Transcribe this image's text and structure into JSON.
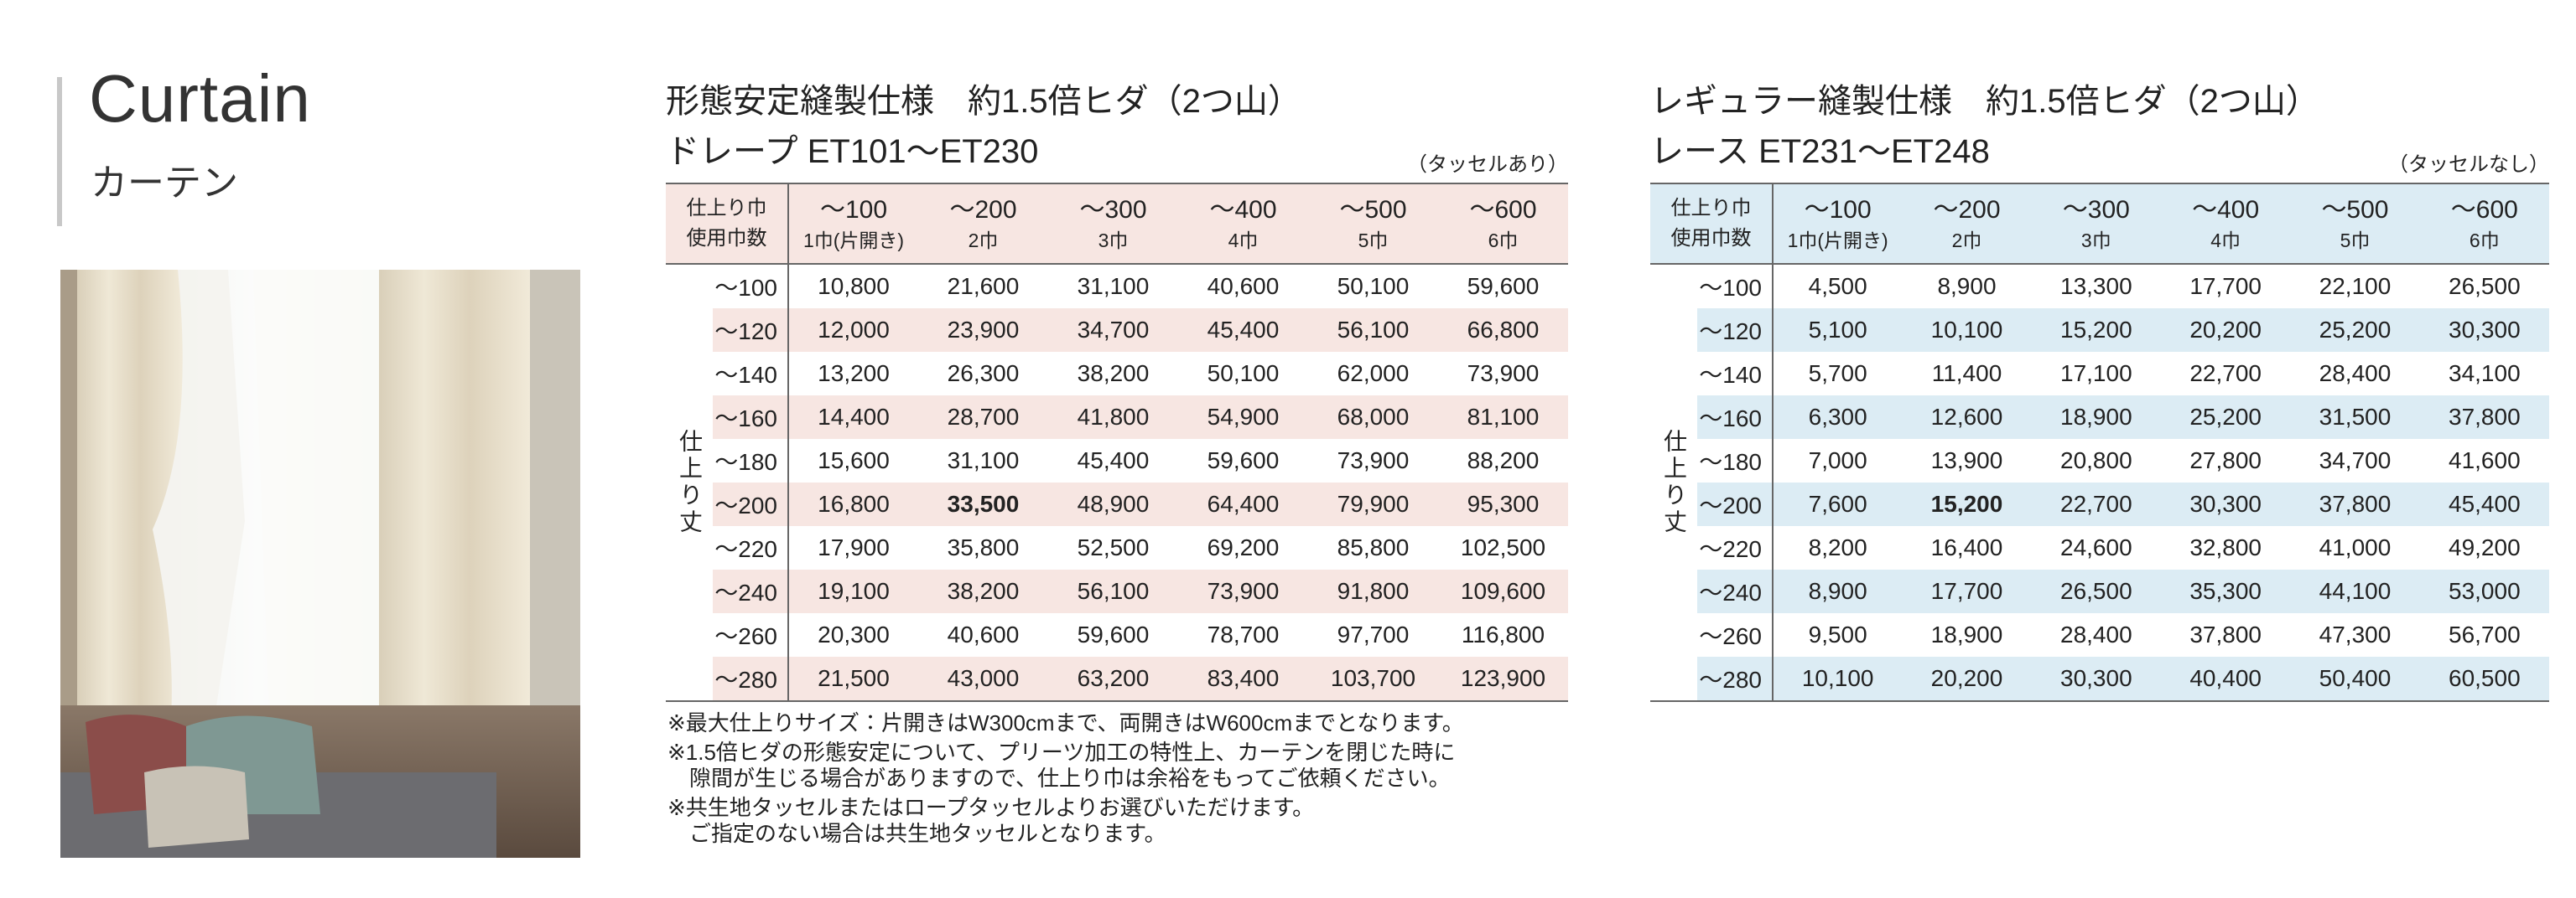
{
  "header": {
    "title": "Curtain",
    "subtitle": "カーテン"
  },
  "tables": [
    {
      "title_line1": "形態安定縫製仕様　約1.5倍ヒダ（2つ山）",
      "title_line2": "ドレープ ET101～ET230",
      "note": "（タッセルあり）",
      "accent_color": "#f7e6e2",
      "corner": [
        "仕上り巾",
        "使用巾数"
      ],
      "row_header": "仕上り丈",
      "columns": [
        {
          "width": "～100",
          "count": "1巾(片開き)"
        },
        {
          "width": "～200",
          "count": "2巾"
        },
        {
          "width": "～300",
          "count": "3巾"
        },
        {
          "width": "～400",
          "count": "4巾"
        },
        {
          "width": "～500",
          "count": "5巾"
        },
        {
          "width": "～600",
          "count": "6巾"
        }
      ],
      "emphasis": {
        "row": 5,
        "column": 1
      },
      "rows": [
        {
          "label": "～100",
          "cells": [
            "10,800",
            "21,600",
            "31,100",
            "40,600",
            "50,100",
            "59,600"
          ]
        },
        {
          "label": "～120",
          "cells": [
            "12,000",
            "23,900",
            "34,700",
            "45,400",
            "56,100",
            "66,800"
          ]
        },
        {
          "label": "～140",
          "cells": [
            "13,200",
            "26,300",
            "38,200",
            "50,100",
            "62,000",
            "73,900"
          ]
        },
        {
          "label": "～160",
          "cells": [
            "14,400",
            "28,700",
            "41,800",
            "54,900",
            "68,000",
            "81,100"
          ]
        },
        {
          "label": "～180",
          "cells": [
            "15,600",
            "31,100",
            "45,400",
            "59,600",
            "73,900",
            "88,200"
          ]
        },
        {
          "label": "～200",
          "cells": [
            "16,800",
            "33,500",
            "48,900",
            "64,400",
            "79,900",
            "95,300"
          ]
        },
        {
          "label": "～220",
          "cells": [
            "17,900",
            "35,800",
            "52,500",
            "69,200",
            "85,800",
            "102,500"
          ]
        },
        {
          "label": "～240",
          "cells": [
            "19,100",
            "38,200",
            "56,100",
            "73,900",
            "91,800",
            "109,600"
          ]
        },
        {
          "label": "～260",
          "cells": [
            "20,300",
            "40,600",
            "59,600",
            "78,700",
            "97,700",
            "116,800"
          ]
        },
        {
          "label": "～280",
          "cells": [
            "21,500",
            "43,000",
            "63,200",
            "83,400",
            "103,700",
            "123,900"
          ]
        }
      ]
    },
    {
      "title_line1": "レギュラー縫製仕様　約1.5倍ヒダ（2つ山）",
      "title_line2": "レース ET231～ET248",
      "note": "（タッセルなし）",
      "accent_color": "#dcecf4",
      "corner": [
        "仕上り巾",
        "使用巾数"
      ],
      "row_header": "仕上り丈",
      "columns": [
        {
          "width": "～100",
          "count": "1巾(片開き)"
        },
        {
          "width": "～200",
          "count": "2巾"
        },
        {
          "width": "～300",
          "count": "3巾"
        },
        {
          "width": "～400",
          "count": "4巾"
        },
        {
          "width": "～500",
          "count": "5巾"
        },
        {
          "width": "～600",
          "count": "6巾"
        }
      ],
      "emphasis": {
        "row": 5,
        "column": 1
      },
      "rows": [
        {
          "label": "～100",
          "cells": [
            "4,500",
            "8,900",
            "13,300",
            "17,700",
            "22,100",
            "26,500"
          ]
        },
        {
          "label": "～120",
          "cells": [
            "5,100",
            "10,100",
            "15,200",
            "20,200",
            "25,200",
            "30,300"
          ]
        },
        {
          "label": "～140",
          "cells": [
            "5,700",
            "11,400",
            "17,100",
            "22,700",
            "28,400",
            "34,100"
          ]
        },
        {
          "label": "～160",
          "cells": [
            "6,300",
            "12,600",
            "18,900",
            "25,200",
            "31,500",
            "37,800"
          ]
        },
        {
          "label": "～180",
          "cells": [
            "7,000",
            "13,900",
            "20,800",
            "27,800",
            "34,700",
            "41,600"
          ]
        },
        {
          "label": "～200",
          "cells": [
            "7,600",
            "15,200",
            "22,700",
            "30,300",
            "37,800",
            "45,400"
          ]
        },
        {
          "label": "～220",
          "cells": [
            "8,200",
            "16,400",
            "24,600",
            "32,800",
            "41,000",
            "49,200"
          ]
        },
        {
          "label": "～240",
          "cells": [
            "8,900",
            "17,700",
            "26,500",
            "35,300",
            "44,100",
            "53,000"
          ]
        },
        {
          "label": "～260",
          "cells": [
            "9,500",
            "18,900",
            "28,400",
            "37,800",
            "47,300",
            "56,700"
          ]
        },
        {
          "label": "～280",
          "cells": [
            "10,100",
            "20,200",
            "30,300",
            "40,400",
            "50,400",
            "60,500"
          ]
        }
      ]
    }
  ],
  "notes": [
    [
      "※最大仕上りサイズ：片開きはW300cmまで、両開きはW600cmまでとなります。"
    ],
    [
      "※1.5倍ヒダの形態安定について、プリーツ加工の特性上、カーテンを閉じた時に",
      "　隙間が生じる場合がありますので、仕上り巾は余裕をもってご依頼ください。"
    ],
    [
      "※共生地タッセルまたはロープタッセルよりお選びいただけます。",
      "　ご指定のない場合は共生地タッセルとなります。"
    ]
  ]
}
